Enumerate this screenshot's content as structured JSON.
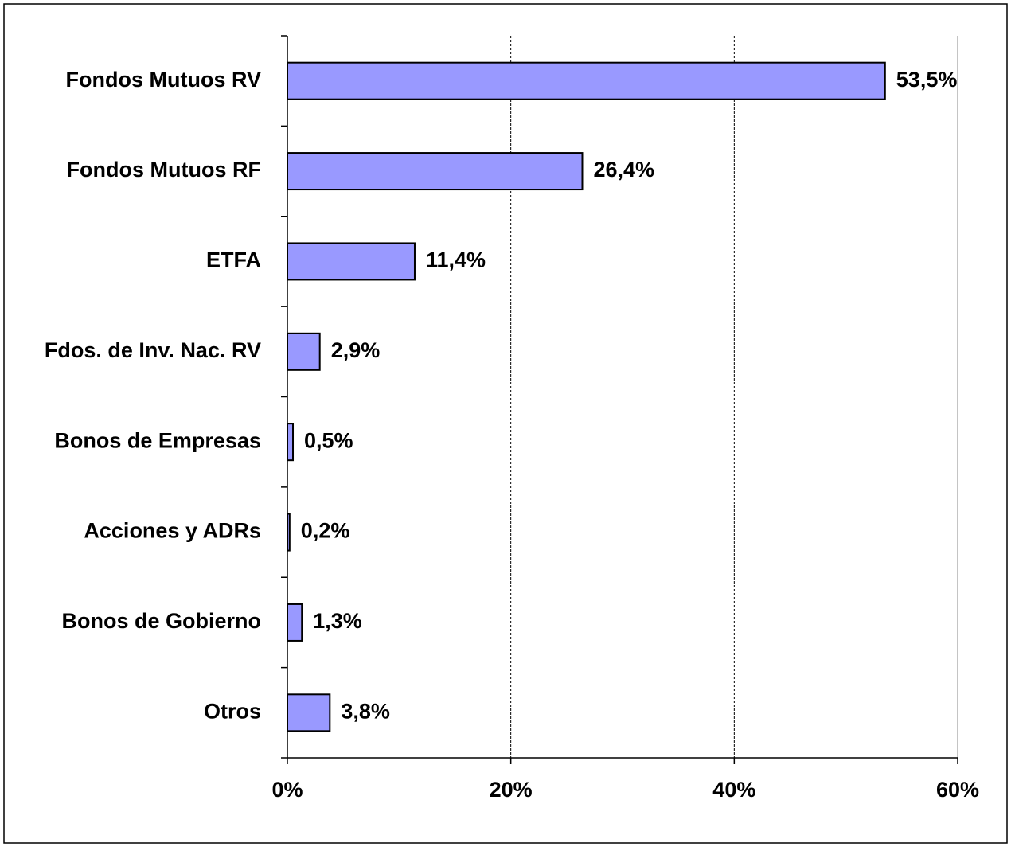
{
  "chart_data": {
    "type": "bar",
    "orientation": "horizontal",
    "categories": [
      "Fondos Mutuos RV",
      "Fondos Mutuos RF",
      "ETFA",
      "Fdos. de Inv. Nac. RV",
      "Bonos de Empresas",
      "Acciones y ADRs",
      "Bonos de Gobierno",
      "Otros"
    ],
    "values": [
      53.5,
      26.4,
      11.4,
      2.9,
      0.5,
      0.2,
      1.3,
      3.8
    ],
    "value_labels": [
      "53,5%",
      "26,4%",
      "11,4%",
      "2,9%",
      "0,5%",
      "0,2%",
      "1,3%",
      "3,8%"
    ],
    "color": "#9999ff",
    "xlim": [
      0,
      60
    ],
    "xticks": [
      {
        "value": 0,
        "label": "0%"
      },
      {
        "value": 20,
        "label": "20%"
      },
      {
        "value": 40,
        "label": "40%"
      },
      {
        "value": 60,
        "label": "60%"
      }
    ],
    "grid": true
  }
}
